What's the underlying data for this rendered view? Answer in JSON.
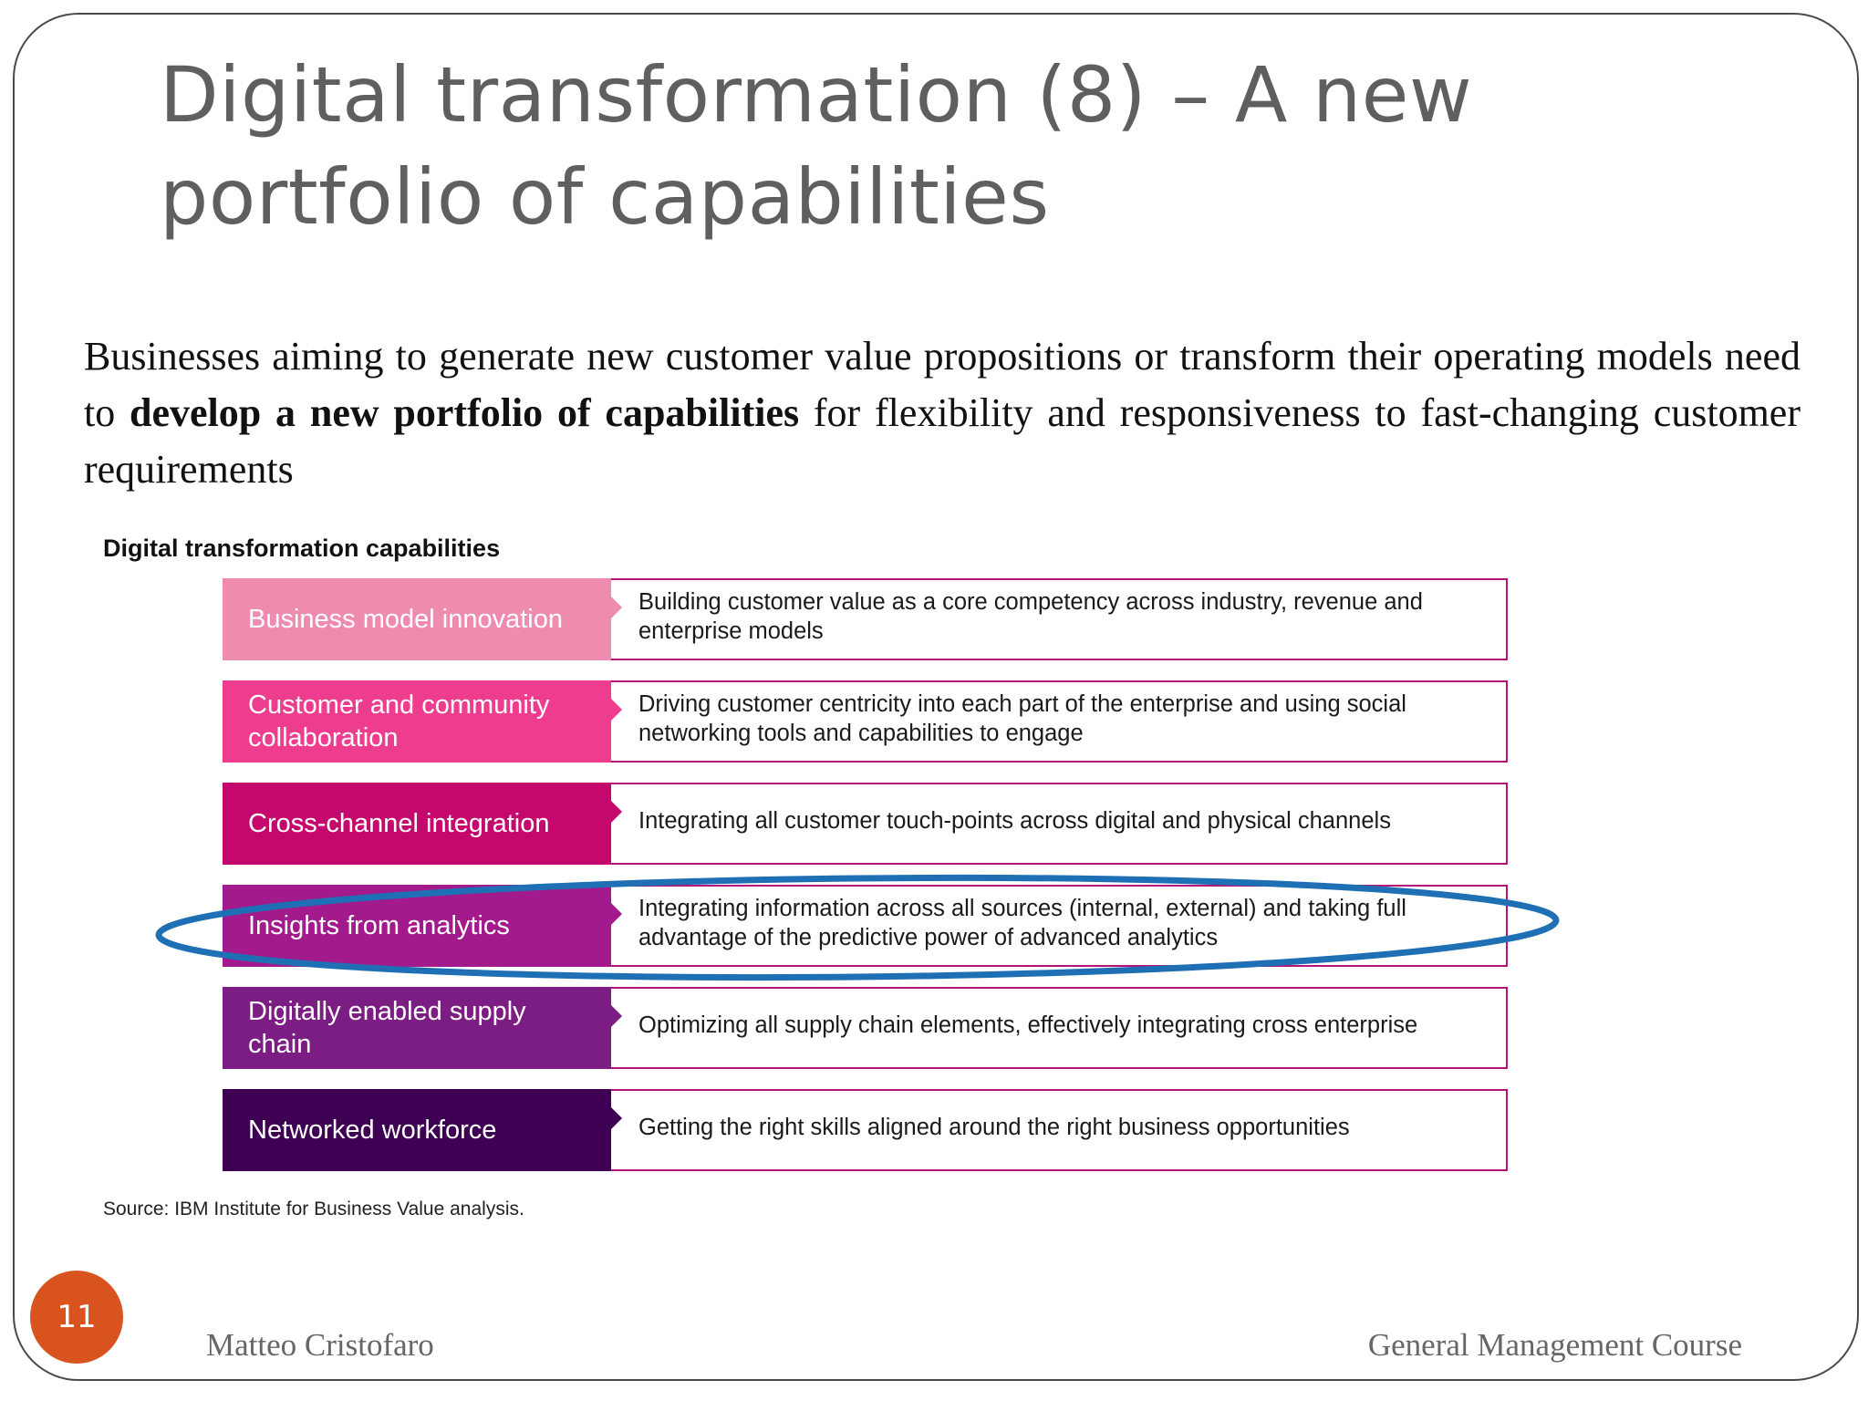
{
  "slide": {
    "title": "Digital transformation (8) – A new portfolio of capabilities",
    "intro": {
      "before": "Businesses aiming to generate new customer value propositions or transform their operating models need to ",
      "bold": "develop a new portfolio of capabilities",
      "after": " for flexibility and responsiveness to fast-changing customer requirements"
    },
    "figure": {
      "title": "Digital transformation capabilities",
      "rows": [
        {
          "label": "Business model innovation",
          "description": "Building customer value as a core competency across industry, revenue and enterprise models",
          "color": "#f08bb0"
        },
        {
          "label": "Customer and community collaboration",
          "description": "Driving customer centricity into each part of the enterprise and using social networking tools and capabilities to engage",
          "color": "#ee3d8f"
        },
        {
          "label": "Cross-channel integration",
          "description": "Integrating all customer touch-points across digital and physical channels",
          "color": "#c4086e"
        },
        {
          "label": "Insights from analytics",
          "description": "Integrating information across all sources (internal, external) and taking full advantage of the predictive power of advanced analytics",
          "color": "#a21a8b"
        },
        {
          "label": "Digitally enabled supply chain",
          "description": "Optimizing all supply chain elements, effectively integrating cross enterprise",
          "color": "#7c1d84"
        },
        {
          "label": "Networked workforce",
          "description": "Getting the right skills aligned around the right business opportunities",
          "color": "#3d0052"
        }
      ],
      "highlight_color": "#1f6fb5",
      "source": "Source: IBM Institute for Business Value analysis."
    },
    "page_number": "11",
    "footer_left": "Matteo Cristofaro",
    "footer_right": "General Management Course"
  }
}
